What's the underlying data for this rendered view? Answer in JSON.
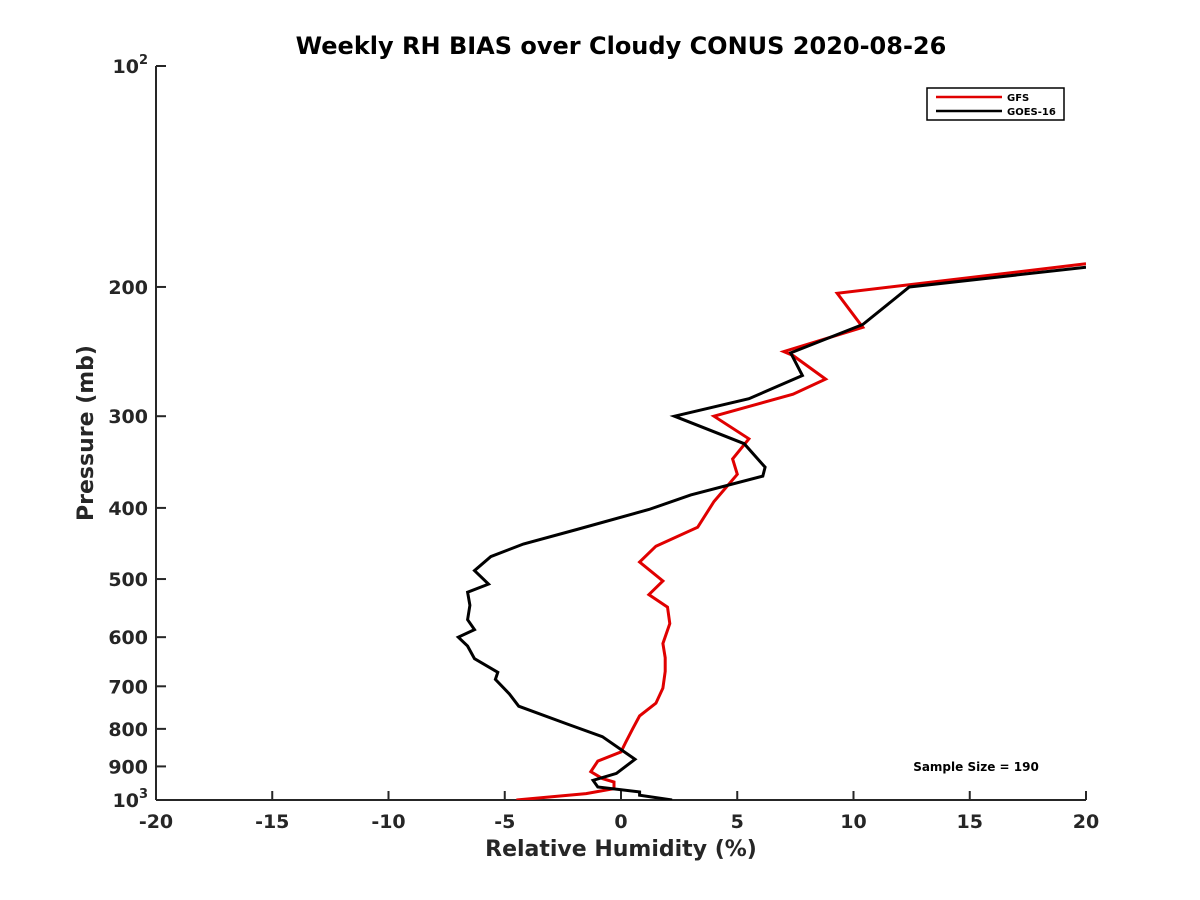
{
  "chart_data": {
    "type": "line",
    "title": "Weekly RH BIAS over Cloudy CONUS 2020-08-26",
    "xlabel": "Relative Humidity (%)",
    "ylabel": "Pressure (mb)",
    "xlim": [
      -20,
      20
    ],
    "ylim": [
      1000,
      100
    ],
    "yscale": "log",
    "y_inverted": true,
    "grid": false,
    "legend_position": "top-right",
    "x_ticks": [
      "-20",
      "-15",
      "-10",
      "-5",
      "0",
      "5",
      "10",
      "15",
      "20"
    ],
    "y_ticks": [
      {
        "value": 100,
        "base": "10",
        "exp": "2"
      },
      {
        "value": 200,
        "label": "200"
      },
      {
        "value": 300,
        "label": "300"
      },
      {
        "value": 400,
        "label": "400"
      },
      {
        "value": 500,
        "label": "500"
      },
      {
        "value": 600,
        "label": "600"
      },
      {
        "value": 700,
        "label": "700"
      },
      {
        "value": 800,
        "label": "800"
      },
      {
        "value": 900,
        "label": "900"
      },
      {
        "value": 1000,
        "base": "10",
        "exp": "3"
      }
    ],
    "annotation": "Sample Size = 190",
    "series": [
      {
        "name": "GFS",
        "color": "#e00000",
        "points": [
          [
            -4.5,
            1000
          ],
          [
            -1.5,
            980
          ],
          [
            -0.3,
            965
          ],
          [
            -0.3,
            945
          ],
          [
            -0.8,
            935
          ],
          [
            -1.3,
            915
          ],
          [
            -1.0,
            885
          ],
          [
            0.0,
            860
          ],
          [
            0.2,
            835
          ],
          [
            0.5,
            800
          ],
          [
            0.8,
            768
          ],
          [
            1.5,
            738
          ],
          [
            1.8,
            704
          ],
          [
            1.9,
            668
          ],
          [
            1.9,
            640
          ],
          [
            1.8,
            612
          ],
          [
            2.1,
            575
          ],
          [
            2.0,
            546
          ],
          [
            1.2,
            525
          ],
          [
            1.8,
            503
          ],
          [
            0.8,
            474
          ],
          [
            1.5,
            451
          ],
          [
            3.3,
            425
          ],
          [
            4.0,
            392
          ],
          [
            5.0,
            360
          ],
          [
            4.8,
            343
          ],
          [
            5.5,
            322
          ],
          [
            4.0,
            300
          ],
          [
            7.4,
            280
          ],
          [
            8.8,
            267
          ],
          [
            7.4,
            248
          ],
          [
            7.0,
            245
          ],
          [
            10.4,
            227
          ],
          [
            9.3,
            204
          ],
          [
            20.0,
            186
          ]
        ]
      },
      {
        "name": "GOES-16",
        "color": "#000000",
        "points": [
          [
            2.2,
            1000
          ],
          [
            0.8,
            985
          ],
          [
            0.8,
            975
          ],
          [
            -1.0,
            960
          ],
          [
            -1.2,
            940
          ],
          [
            -0.2,
            920
          ],
          [
            0.6,
            880
          ],
          [
            -0.8,
            820
          ],
          [
            -2.3,
            788
          ],
          [
            -4.4,
            745
          ],
          [
            -4.8,
            717
          ],
          [
            -5.4,
            685
          ],
          [
            -5.3,
            670
          ],
          [
            -6.3,
            642
          ],
          [
            -6.6,
            617
          ],
          [
            -7.0,
            600
          ],
          [
            -6.3,
            586
          ],
          [
            -6.6,
            568
          ],
          [
            -6.5,
            543
          ],
          [
            -6.6,
            521
          ],
          [
            -5.7,
            508
          ],
          [
            -6.3,
            487
          ],
          [
            -5.6,
            466
          ],
          [
            -4.2,
            448
          ],
          [
            -1.9,
            428
          ],
          [
            1.2,
            402
          ],
          [
            3.0,
            384
          ],
          [
            6.1,
            362
          ],
          [
            6.2,
            352
          ],
          [
            5.3,
            327
          ],
          [
            2.3,
            300
          ],
          [
            5.5,
            284
          ],
          [
            7.8,
            264
          ],
          [
            7.3,
            246
          ],
          [
            10.4,
            225
          ],
          [
            12.4,
            200
          ],
          [
            20.0,
            188
          ]
        ]
      }
    ]
  }
}
